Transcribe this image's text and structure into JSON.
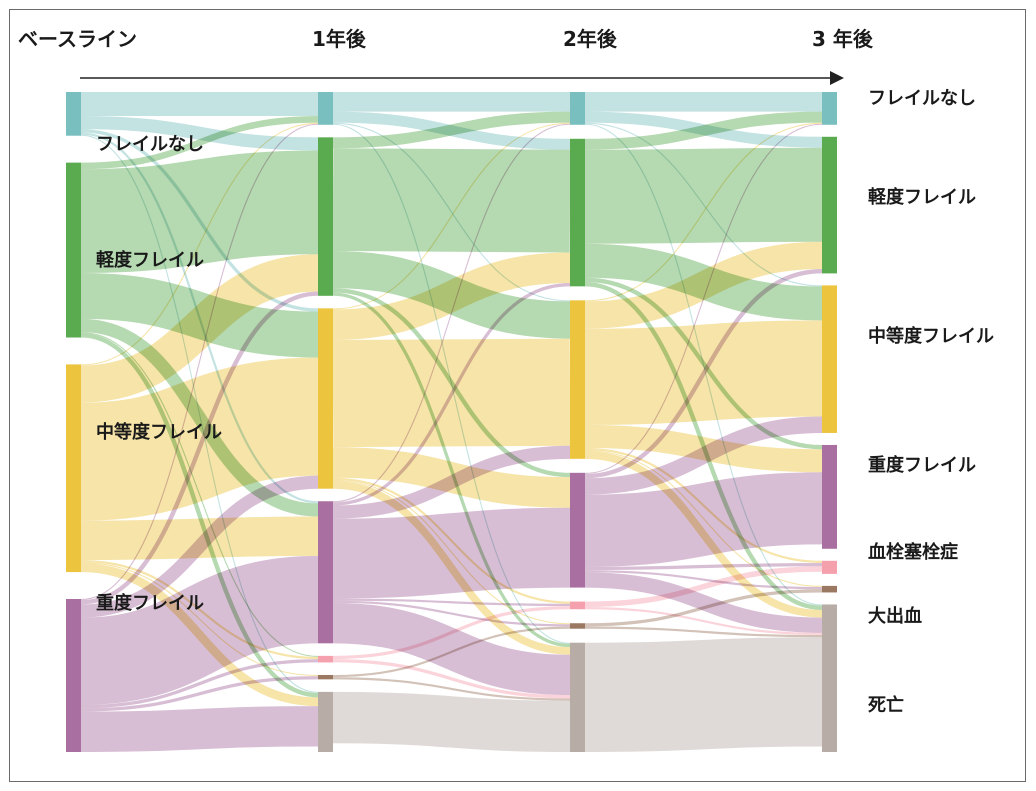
{
  "header": {
    "baseline": "ベースライン",
    "year1": "1年後",
    "year2": "2年後",
    "year3": "3 年後"
  },
  "colors": {
    "none": "#79bfbf",
    "mild": "#5aaa50",
    "moderate": "#ecc43e",
    "severe": "#a96fa0",
    "vte": "#f4a0ad",
    "bleed": "#9b7862",
    "death": "#b7aca6"
  },
  "diagram": {
    "states": [
      "none",
      "mild",
      "moderate",
      "severe",
      "vte",
      "bleed",
      "death"
    ],
    "labels": {
      "none": "フレイルなし",
      "mild": "軽度フレイル",
      "moderate": "中等度フレイル",
      "severe": "重度フレイル",
      "vte": "血栓塞栓症",
      "bleed": "大出血",
      "death": "死亡"
    },
    "columns": [
      {
        "none": 4,
        "mild": 16,
        "moderate": 19,
        "severe": 14,
        "vte": 0,
        "bleed": 0,
        "death": 0
      },
      {
        "none": 3,
        "mild": 14.5,
        "moderate": 16.5,
        "severe": 13,
        "vte": 0.6,
        "bleed": 0.4,
        "death": 5.5
      },
      {
        "none": 3,
        "mild": 13.5,
        "moderate": 14.5,
        "severe": 10.5,
        "vte": 0.7,
        "bleed": 0.5,
        "death": 10
      },
      {
        "none": 3,
        "mild": 12.5,
        "moderate": 13.5,
        "severe": 9.5,
        "vte": 1.2,
        "bleed": 0.6,
        "death": 13.5
      }
    ],
    "flows": [
      [
        [
          "none",
          "none",
          2.2
        ],
        [
          "none",
          "mild",
          1.2
        ],
        [
          "none",
          "moderate",
          0.3
        ],
        [
          "none",
          "severe",
          0.2
        ],
        [
          "none",
          "death",
          0.1
        ],
        [
          "mild",
          "none",
          0.6
        ],
        [
          "mild",
          "mild",
          9.5
        ],
        [
          "mild",
          "moderate",
          4.2
        ],
        [
          "mild",
          "severe",
          1.2
        ],
        [
          "mild",
          "vte",
          0.1
        ],
        [
          "mild",
          "death",
          0.4
        ],
        [
          "moderate",
          "none",
          0.1
        ],
        [
          "moderate",
          "mild",
          3.4
        ],
        [
          "moderate",
          "moderate",
          10.8
        ],
        [
          "moderate",
          "severe",
          3.6
        ],
        [
          "moderate",
          "vte",
          0.2
        ],
        [
          "moderate",
          "bleed",
          0.1
        ],
        [
          "moderate",
          "death",
          0.8
        ],
        [
          "severe",
          "none",
          0.1
        ],
        [
          "severe",
          "mild",
          0.4
        ],
        [
          "severe",
          "moderate",
          1.2
        ],
        [
          "severe",
          "severe",
          8
        ],
        [
          "severe",
          "vte",
          0.3
        ],
        [
          "severe",
          "bleed",
          0.3
        ],
        [
          "severe",
          "death",
          3.7
        ]
      ],
      [
        [
          "none",
          "none",
          1.8
        ],
        [
          "none",
          "mild",
          1
        ],
        [
          "none",
          "moderate",
          0.1
        ],
        [
          "none",
          "death",
          0.1
        ],
        [
          "mild",
          "none",
          1
        ],
        [
          "mild",
          "mild",
          9.4
        ],
        [
          "mild",
          "moderate",
          3.4
        ],
        [
          "mild",
          "severe",
          0.4
        ],
        [
          "mild",
          "death",
          0.3
        ],
        [
          "moderate",
          "none",
          0.1
        ],
        [
          "moderate",
          "mild",
          2.8
        ],
        [
          "moderate",
          "moderate",
          9.8
        ],
        [
          "moderate",
          "severe",
          2.8
        ],
        [
          "moderate",
          "vte",
          0.2
        ],
        [
          "moderate",
          "bleed",
          0.1
        ],
        [
          "moderate",
          "death",
          0.7
        ],
        [
          "severe",
          "none",
          0.1
        ],
        [
          "severe",
          "mild",
          0.3
        ],
        [
          "severe",
          "moderate",
          1.2
        ],
        [
          "severe",
          "severe",
          7.3
        ],
        [
          "severe",
          "vte",
          0.2
        ],
        [
          "severe",
          "bleed",
          0.2
        ],
        [
          "severe",
          "death",
          3.7
        ],
        [
          "vte",
          "vte",
          0.3
        ],
        [
          "vte",
          "death",
          0.3
        ],
        [
          "bleed",
          "bleed",
          0.2
        ],
        [
          "bleed",
          "death",
          0.2
        ],
        [
          "death",
          "death",
          4.7
        ]
      ],
      [
        [
          "none",
          "none",
          1.8
        ],
        [
          "none",
          "mild",
          1
        ],
        [
          "none",
          "moderate",
          0.1
        ],
        [
          "none",
          "death",
          0.1
        ],
        [
          "mild",
          "none",
          1
        ],
        [
          "mild",
          "mild",
          8.6
        ],
        [
          "mild",
          "moderate",
          3.1
        ],
        [
          "mild",
          "severe",
          0.4
        ],
        [
          "mild",
          "death",
          0.4
        ],
        [
          "moderate",
          "none",
          0.1
        ],
        [
          "moderate",
          "mild",
          2.5
        ],
        [
          "moderate",
          "moderate",
          8.8
        ],
        [
          "moderate",
          "severe",
          2.1
        ],
        [
          "moderate",
          "vte",
          0.2
        ],
        [
          "moderate",
          "bleed",
          0.1
        ],
        [
          "moderate",
          "death",
          0.7
        ],
        [
          "severe",
          "none",
          0.1
        ],
        [
          "severe",
          "mild",
          0.4
        ],
        [
          "severe",
          "moderate",
          1.5
        ],
        [
          "severe",
          "severe",
          6.6
        ],
        [
          "severe",
          "vte",
          0.3
        ],
        [
          "severe",
          "bleed",
          0.2
        ],
        [
          "severe",
          "death",
          1.4
        ],
        [
          "vte",
          "vte",
          0.5
        ],
        [
          "vte",
          "death",
          0.2
        ],
        [
          "bleed",
          "bleed",
          0.3
        ],
        [
          "bleed",
          "death",
          0.2
        ],
        [
          "death",
          "death",
          10
        ]
      ]
    ]
  }
}
